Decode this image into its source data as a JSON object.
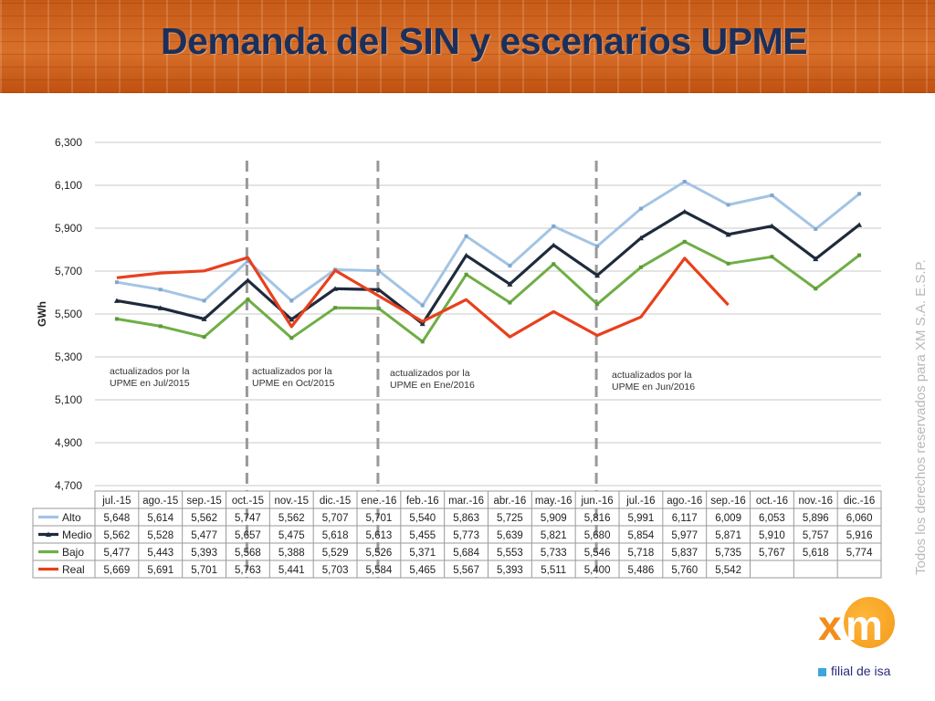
{
  "page": {
    "title": "Demanda del SIN y escenarios UPME",
    "side_note": "Todos los derechos reservados para XM S.A. E.S.P.",
    "logo_text": "xm",
    "logo_sub": "filial de isa"
  },
  "colors": {
    "alto": "#a3c4e4",
    "medio": "#1f2a3c",
    "bajo": "#6fae45",
    "real": "#e8401c",
    "title": "#1c2f5a",
    "banner": "#c65a18",
    "dash": "#999999"
  },
  "chart_data": {
    "type": "line",
    "title": "",
    "xlabel": "",
    "ylabel": "GWh",
    "ylim": [
      4700,
      6300
    ],
    "yticks": [
      "4,700",
      "4,900",
      "5,100",
      "5,300",
      "5,500",
      "5,700",
      "5,900",
      "6,100",
      "6,300"
    ],
    "ytick_values": [
      4700,
      4900,
      5100,
      5300,
      5500,
      5700,
      5900,
      6100,
      6300
    ],
    "grid": true,
    "categories": [
      "jul.-15",
      "ago.-15",
      "sep.-15",
      "oct.-15",
      "nov.-15",
      "dic.-15",
      "ene.-16",
      "feb.-16",
      "mar.-16",
      "abr.-16",
      "may.-16",
      "jun.-16",
      "jul.-16",
      "ago.-16",
      "sep.-16",
      "oct.-16",
      "nov.-16",
      "dic.-16"
    ],
    "series": [
      {
        "name": "Alto",
        "color": "#a3c4e4",
        "values": [
          5648,
          5614,
          5562,
          5747,
          5562,
          5707,
          5701,
          5540,
          5863,
          5725,
          5909,
          5816,
          5991,
          6117,
          6009,
          6053,
          5896,
          6060
        ],
        "labels": [
          "5,648",
          "5,614",
          "5,562",
          "5,747",
          "5,562",
          "5,707",
          "5,701",
          "5,540",
          "5,863",
          "5,725",
          "5,909",
          "5,816",
          "5,991",
          "6,117",
          "6,009",
          "6,053",
          "5,896",
          "6,060"
        ]
      },
      {
        "name": "Medio",
        "color": "#1f2a3c",
        "values": [
          5562,
          5528,
          5477,
          5657,
          5475,
          5618,
          5613,
          5455,
          5773,
          5639,
          5821,
          5680,
          5854,
          5977,
          5871,
          5910,
          5757,
          5916
        ],
        "labels": [
          "5,562",
          "5,528",
          "5,477",
          "5,657",
          "5,475",
          "5,618",
          "5,613",
          "5,455",
          "5,773",
          "5,639",
          "5,821",
          "5,680",
          "5,854",
          "5,977",
          "5,871",
          "5,910",
          "5,757",
          "5,916"
        ]
      },
      {
        "name": "Bajo",
        "color": "#6fae45",
        "values": [
          5477,
          5443,
          5393,
          5568,
          5388,
          5529,
          5526,
          5371,
          5684,
          5553,
          5733,
          5546,
          5718,
          5837,
          5735,
          5767,
          5618,
          5774
        ],
        "labels": [
          "5,477",
          "5,443",
          "5,393",
          "5,568",
          "5,388",
          "5,529",
          "5,526",
          "5,371",
          "5,684",
          "5,553",
          "5,733",
          "5,546",
          "5,718",
          "5,837",
          "5,735",
          "5,767",
          "5,618",
          "5,774"
        ]
      },
      {
        "name": "Real",
        "color": "#e8401c",
        "values": [
          5669,
          5691,
          5701,
          5763,
          5441,
          5703,
          5584,
          5465,
          5567,
          5393,
          5511,
          5400,
          5486,
          5760,
          5542,
          null,
          null,
          null
        ],
        "labels": [
          "5,669",
          "5,691",
          "5,701",
          "5,763",
          "5,441",
          "5,703",
          "5,584",
          "5,465",
          "5,567",
          "5,393",
          "5,511",
          "5,400",
          "5,486",
          "5,760",
          "5,542",
          "",
          "",
          ""
        ]
      }
    ],
    "annotations": [
      {
        "after_index": -1,
        "lines": [
          "actualizados  por  la",
          "UPME  en Jul/2015"
        ]
      },
      {
        "after_index": 3,
        "lines": [
          "actualizados  por  la",
          "UPME  en Oct/2015"
        ]
      },
      {
        "after_index": 6,
        "lines": [
          "actualizados  por  la",
          "UPME  en Ene/2016"
        ]
      },
      {
        "after_index": 11,
        "lines": [
          "actualizados  por  la",
          "UPME  en Jun/2016"
        ]
      }
    ],
    "dashed_lines_at_index": [
      3,
      6,
      11
    ]
  }
}
